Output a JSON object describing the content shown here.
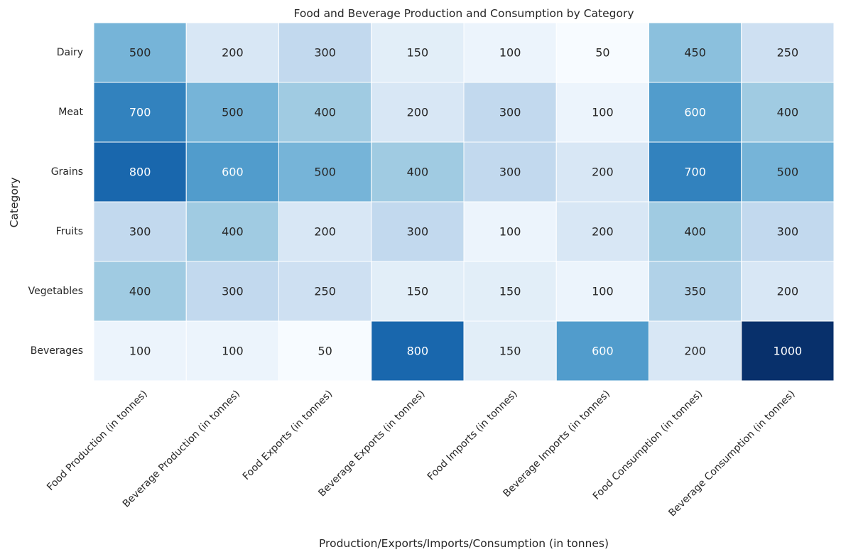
{
  "chart_data": {
    "type": "heatmap",
    "title": "Food and Beverage Production and Consumption by Category",
    "xlabel": "Production/Exports/Imports/Consumption (in tonnes)",
    "ylabel": "Category",
    "x_categories": [
      "Food Production (in tonnes)",
      "Beverage Production (in tonnes)",
      "Food Exports (in tonnes)",
      "Beverage Exports (in tonnes)",
      "Food Imports (in tonnes)",
      "Beverage Imports (in tonnes)",
      "Food Consumption (in tonnes)",
      "Beverage Consumption (in tonnes)"
    ],
    "y_categories": [
      "Dairy",
      "Meat",
      "Grains",
      "Fruits",
      "Vegetables",
      "Beverages"
    ],
    "values": [
      [
        500,
        200,
        300,
        150,
        100,
        50,
        450,
        250
      ],
      [
        700,
        500,
        400,
        200,
        300,
        100,
        600,
        400
      ],
      [
        800,
        600,
        500,
        400,
        300,
        200,
        700,
        500
      ],
      [
        300,
        400,
        200,
        300,
        100,
        200,
        400,
        300
      ],
      [
        400,
        300,
        250,
        150,
        150,
        100,
        350,
        200
      ],
      [
        100,
        100,
        50,
        800,
        150,
        600,
        200,
        1000
      ]
    ],
    "colormap": "Blues",
    "value_range": [
      50,
      1000
    ],
    "annotations": true,
    "colorbar": false
  }
}
